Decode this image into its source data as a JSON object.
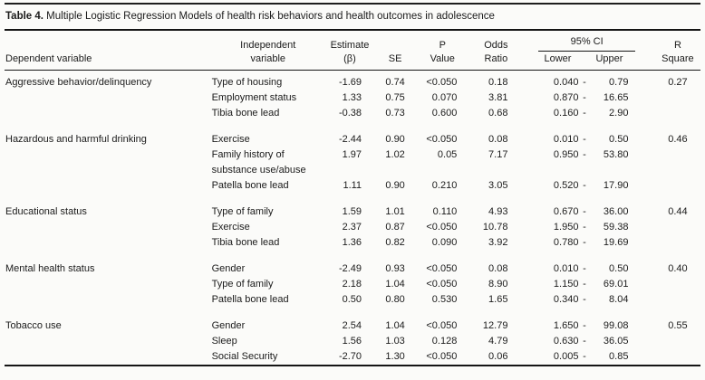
{
  "caption": {
    "label": "Table 4.",
    "text": " Multiple Logistic Regression Models of health risk behaviors and health outcomes in adolescence"
  },
  "table": {
    "headers": {
      "dependent": "Dependent variable",
      "independent": [
        "Independent",
        "variable"
      ],
      "estimate": [
        "Estimate",
        "(β)"
      ],
      "se": "SE",
      "p": [
        "P",
        "Value"
      ],
      "odds": [
        "Odds",
        "Ratio"
      ],
      "ci": "95% CI",
      "ci_lower": "Lower",
      "ci_upper": "Upper",
      "r": [
        "R",
        "Square"
      ]
    },
    "groups": [
      {
        "dependent": "Aggressive behavior/delinquency",
        "r_square": "0.27",
        "rows": [
          {
            "independent": "Type of housing",
            "estimate": "-1.69",
            "se": "0.74",
            "p": "<0.050",
            "odds": "0.18",
            "ci_lower": "0.040",
            "ci_upper": "0.79"
          },
          {
            "independent": "Employment status",
            "estimate": "1.33",
            "se": "0.75",
            "p": "0.070",
            "odds": "3.81",
            "ci_lower": "0.870",
            "ci_upper": "16.65"
          },
          {
            "independent": "Tibia bone lead",
            "estimate": "-0.38",
            "se": "0.73",
            "p": "0.600",
            "odds": "0.68",
            "ci_lower": "0.160",
            "ci_upper": "2.90"
          }
        ]
      },
      {
        "dependent": "Hazardous and harmful drinking",
        "r_square": "0.46",
        "rows": [
          {
            "independent": "Exercise",
            "estimate": "-2.44",
            "se": "0.90",
            "p": "<0.050",
            "odds": "0.08",
            "ci_lower": "0.010",
            "ci_upper": "0.50"
          },
          {
            "independent": "Family history of substance use/abuse",
            "estimate": "1.97",
            "se": "1.02",
            "p": "0.05",
            "odds": "7.17",
            "ci_lower": "0.950",
            "ci_upper": "53.80"
          },
          {
            "independent": "Patella bone lead",
            "estimate": "1.11",
            "se": "0.90",
            "p": "0.210",
            "odds": "3.05",
            "ci_lower": "0.520",
            "ci_upper": "17.90"
          }
        ]
      },
      {
        "dependent": "Educational status",
        "r_square": "0.44",
        "rows": [
          {
            "independent": "Type of family",
            "estimate": "1.59",
            "se": "1.01",
            "p": "0.110",
            "odds": "4.93",
            "ci_lower": "0.670",
            "ci_upper": "36.00"
          },
          {
            "independent": "Exercise",
            "estimate": "2.37",
            "se": "0.87",
            "p": "<0.050",
            "odds": "10.78",
            "ci_lower": "1.950",
            "ci_upper": "59.38"
          },
          {
            "independent": "Tibia bone lead",
            "estimate": "1.36",
            "se": "0.82",
            "p": "0.090",
            "odds": "3.92",
            "ci_lower": "0.780",
            "ci_upper": "19.69"
          }
        ]
      },
      {
        "dependent": "Mental health status",
        "r_square": "0.40",
        "rows": [
          {
            "independent": "Gender",
            "estimate": "-2.49",
            "se": "0.93",
            "p": "<0.050",
            "odds": "0.08",
            "ci_lower": "0.010",
            "ci_upper": "0.50"
          },
          {
            "independent": "Type of family",
            "estimate": "2.18",
            "se": "1.04",
            "p": "<0.050",
            "odds": "8.90",
            "ci_lower": "1.150",
            "ci_upper": "69.01"
          },
          {
            "independent": "Patella bone lead",
            "estimate": "0.50",
            "se": "0.80",
            "p": "0.530",
            "odds": "1.65",
            "ci_lower": "0.340",
            "ci_upper": "8.04"
          }
        ]
      },
      {
        "dependent": "Tobacco use",
        "r_square": "0.55",
        "rows": [
          {
            "independent": "Gender",
            "estimate": "2.54",
            "se": "1.04",
            "p": "<0.050",
            "odds": "12.79",
            "ci_lower": "1.650",
            "ci_upper": "99.08"
          },
          {
            "independent": "Sleep",
            "estimate": "1.56",
            "se": "1.03",
            "p": "0.128",
            "odds": "4.79",
            "ci_lower": "0.630",
            "ci_upper": "36.05"
          },
          {
            "independent": "Social Security",
            "estimate": "-2.70",
            "se": "1.30",
            "p": "<0.050",
            "odds": "0.06",
            "ci_lower": "0.005",
            "ci_upper": "0.85"
          }
        ]
      }
    ]
  }
}
